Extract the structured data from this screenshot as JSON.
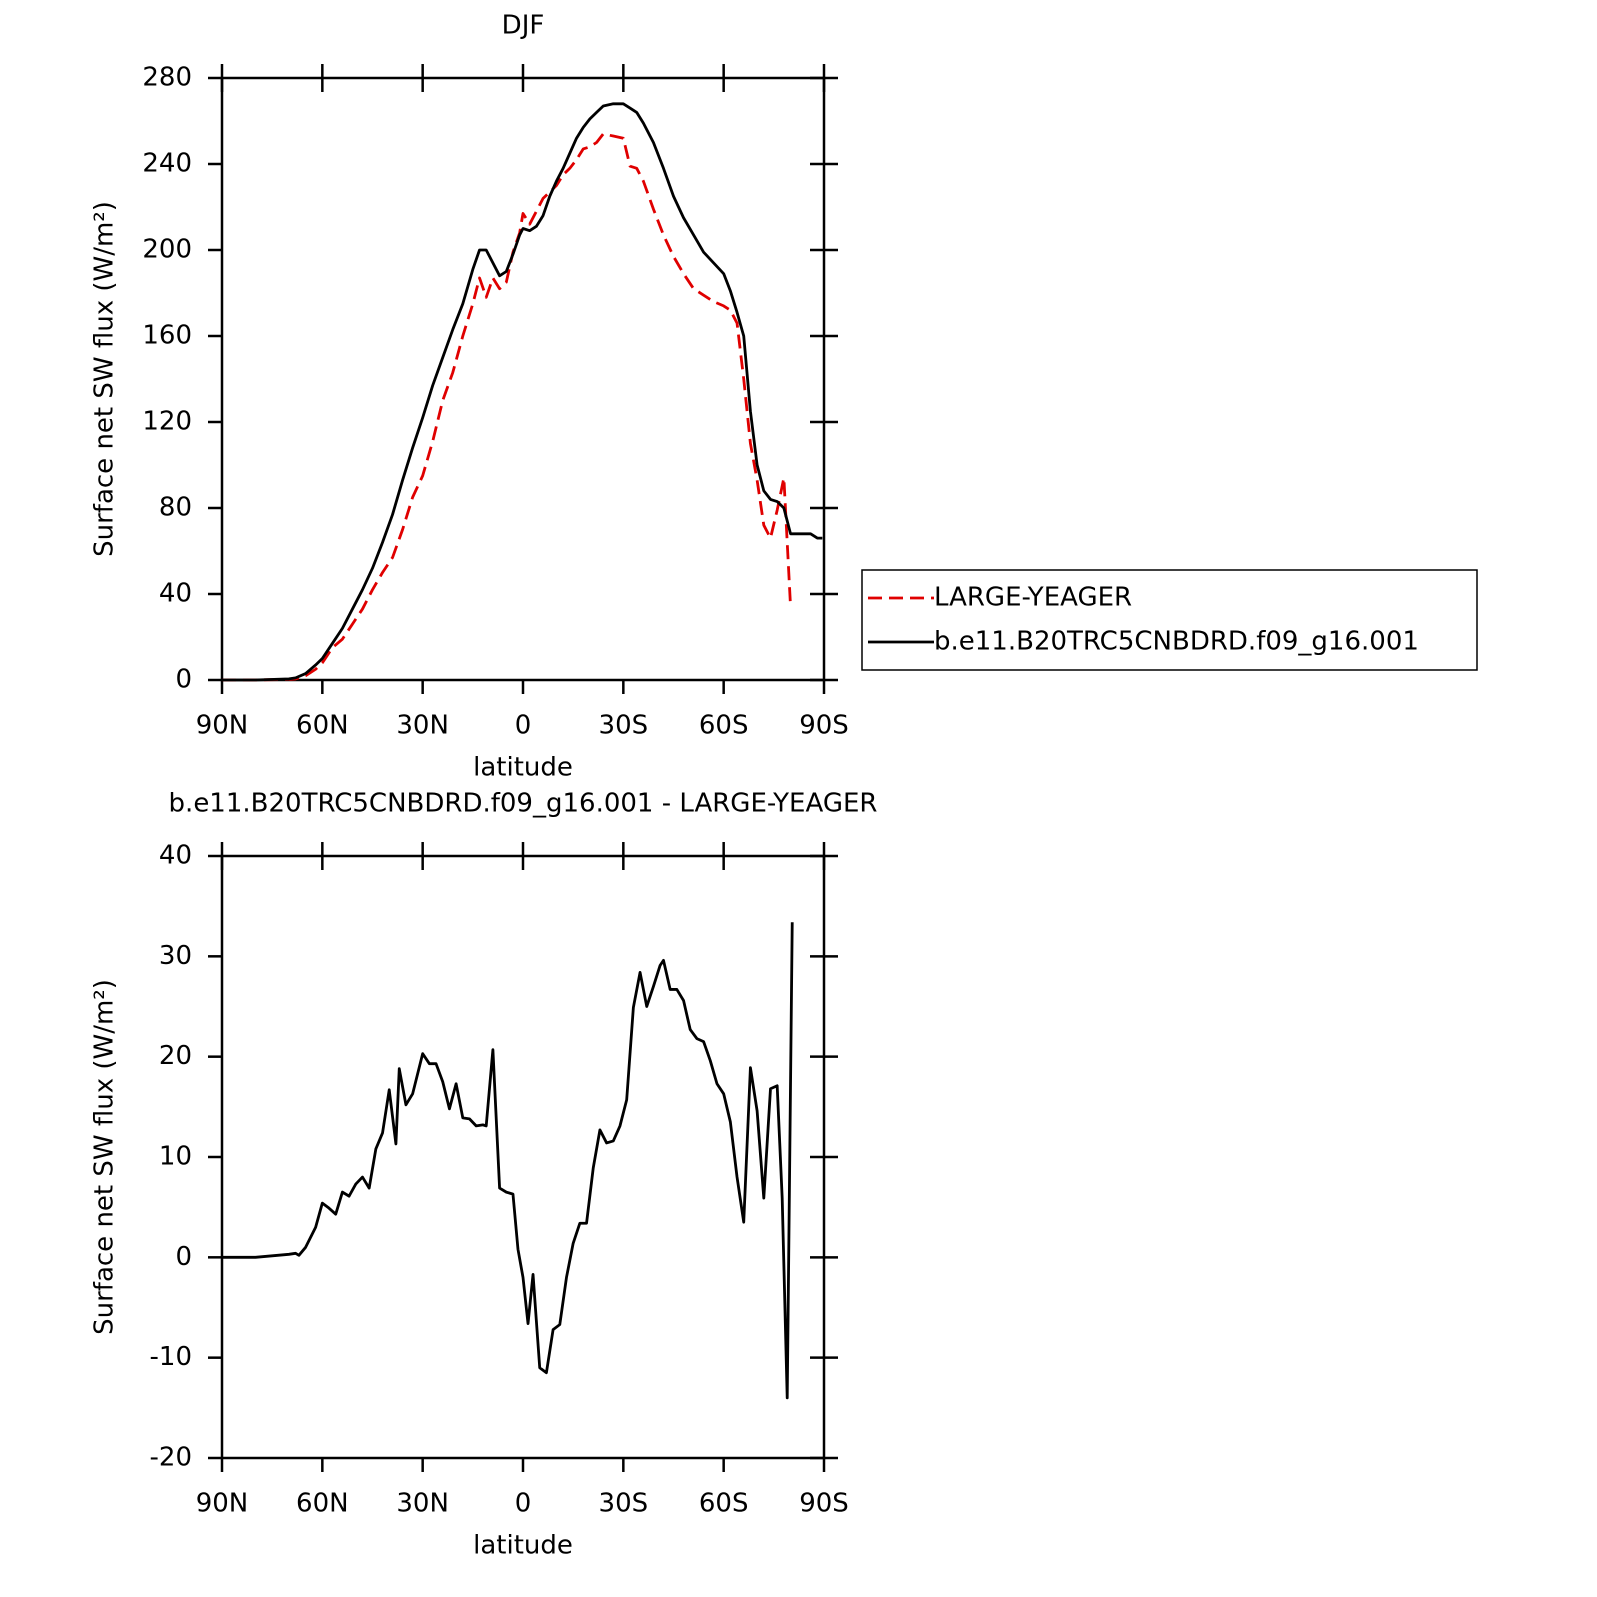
{
  "chart_data": [
    {
      "type": "line",
      "title": "DJF",
      "xlabel": "latitude",
      "ylabel": "Surface net SW flux (W/m²)",
      "xlim": [
        90,
        -90
      ],
      "xticks": [
        {
          "value": 90,
          "label": "90N"
        },
        {
          "value": 60,
          "label": "60N"
        },
        {
          "value": 30,
          "label": "30N"
        },
        0,
        {
          "value": -30,
          "label": "30S"
        },
        {
          "value": -60,
          "label": "60S"
        },
        {
          "value": -90,
          "label": "90S"
        }
      ],
      "ylim": [
        0,
        280
      ],
      "yticks": [
        0,
        40,
        80,
        120,
        160,
        200,
        240,
        280
      ],
      "legend": "right",
      "x": [
        90,
        80,
        70,
        68,
        65,
        62,
        60,
        57,
        54,
        51,
        48,
        45,
        42,
        39,
        36,
        33,
        30,
        27,
        24,
        21,
        18,
        15,
        13,
        11,
        9,
        7,
        5,
        3,
        1,
        0,
        -2,
        -4,
        -6,
        -8,
        -10,
        -12,
        -14,
        -16,
        -18,
        -20,
        -22,
        -24,
        -27,
        -30,
        -32,
        -34,
        -36,
        -39,
        -42,
        -45,
        -48,
        -51,
        -54,
        -57,
        -60,
        -62,
        -64,
        -66,
        -68,
        -70,
        -72,
        -74,
        -76,
        -78,
        -80,
        -82,
        -84,
        -86,
        -88,
        -89.5
      ],
      "series": [
        {
          "name": "LARGE-YEAGER",
          "color": "#e00000",
          "linestyle": "dashed",
          "values": [
            0,
            0,
            0.3,
            0.5,
            2,
            5,
            8,
            15,
            19,
            26,
            33,
            42,
            50,
            57,
            70,
            85,
            95,
            111,
            130,
            143,
            160,
            175,
            187,
            178,
            187,
            182,
            185,
            199,
            208,
            217,
            212,
            218,
            224,
            227,
            230,
            235,
            238,
            242,
            247,
            248,
            250,
            254,
            253,
            252,
            239,
            238,
            232,
            219,
            207,
            197,
            189,
            182,
            179,
            176,
            174,
            172,
            166,
            140,
            110,
            93,
            72,
            66,
            79,
            94,
            34,
            null,
            null,
            null,
            null,
            null
          ]
        },
        {
          "name": "b.e11.B20TRC5CNBDRD.f09_g16.001",
          "color": "#000000",
          "linestyle": "solid",
          "values": [
            0,
            0,
            0.5,
            1,
            3,
            7,
            10,
            17,
            24,
            33,
            42,
            52,
            64,
            77,
            93,
            108,
            122,
            137,
            150,
            163,
            175,
            191,
            200,
            200,
            194,
            188,
            190,
            198,
            207,
            210,
            209,
            211,
            216,
            225,
            232,
            238,
            245,
            252,
            257,
            261,
            264,
            267,
            268,
            268,
            266,
            264,
            259,
            250,
            238,
            225,
            215,
            207,
            199,
            194,
            189,
            181,
            171,
            160,
            125,
            100,
            88,
            84,
            83,
            80,
            68,
            68,
            68,
            68,
            66,
            66
          ]
        }
      ]
    },
    {
      "type": "line",
      "title": "b.e11.B20TRC5CNBDRD.f09_g16.001 - LARGE-YEAGER",
      "xlabel": "latitude",
      "ylabel": "Surface net SW flux (W/m²)",
      "xlim": [
        90,
        -90
      ],
      "xticks": [
        {
          "value": 90,
          "label": "90N"
        },
        {
          "value": 60,
          "label": "60N"
        },
        {
          "value": 30,
          "label": "30N"
        },
        0,
        {
          "value": -30,
          "label": "30S"
        },
        {
          "value": -60,
          "label": "60S"
        },
        {
          "value": -90,
          "label": "90S"
        }
      ],
      "ylim": [
        -20,
        40
      ],
      "yticks": [
        -20,
        -10,
        0,
        10,
        20,
        30,
        40
      ],
      "x": [
        90,
        80,
        70,
        68,
        67,
        65,
        62,
        60,
        58,
        56,
        54,
        52,
        50,
        48,
        46,
        44,
        42,
        40,
        38,
        37,
        35,
        33,
        30,
        28,
        26,
        24,
        22,
        20,
        18,
        16,
        14,
        12,
        11,
        9,
        7,
        5,
        3,
        1.5,
        0,
        -1.5,
        -3,
        -5,
        -7,
        -9,
        -11,
        -13,
        -15,
        -17,
        -19,
        -21,
        -23,
        -25,
        -27,
        -29,
        -31,
        -33,
        -35,
        -37,
        -39,
        -41,
        -42,
        -44,
        -46,
        -48,
        -50,
        -52,
        -54,
        -56,
        -58,
        -60,
        -62,
        -64,
        -66,
        -68,
        -70,
        -72,
        -74,
        -76,
        -77.5,
        -79,
        -80.5
      ],
      "series": [
        {
          "name": "b.e11.B20TRC5CNBDRD.f09_g16.001 - LARGE-YEAGER",
          "color": "#000000",
          "linestyle": "solid",
          "values": [
            0,
            0,
            0.3,
            0.4,
            0.2,
            1,
            3,
            5.4,
            4.9,
            4.3,
            6.5,
            6.1,
            7.3,
            8,
            6.9,
            10.8,
            12.4,
            16.7,
            11.3,
            18.8,
            15.2,
            16.3,
            20.3,
            19.3,
            19.3,
            17.5,
            14.8,
            17.3,
            13.9,
            13.8,
            13.1,
            13.2,
            13.1,
            20.7,
            6.9,
            6.5,
            6.3,
            0.8,
            -2,
            -6.6,
            -1.7,
            -11,
            -11.5,
            -7.2,
            -6.7,
            -2,
            1.4,
            3.4,
            3.4,
            8.9,
            12.7,
            11.4,
            11.6,
            13.1,
            15.7,
            24.9,
            28.4,
            25,
            27,
            29.1,
            29.6,
            26.7,
            26.7,
            25.6,
            22.7,
            21.8,
            21.5,
            19.6,
            17.3,
            16.3,
            13.5,
            8,
            3.5,
            18.9,
            14.6,
            5.9,
            16.8,
            17.1,
            5.9,
            -14,
            33.4
          ]
        }
      ]
    }
  ]
}
